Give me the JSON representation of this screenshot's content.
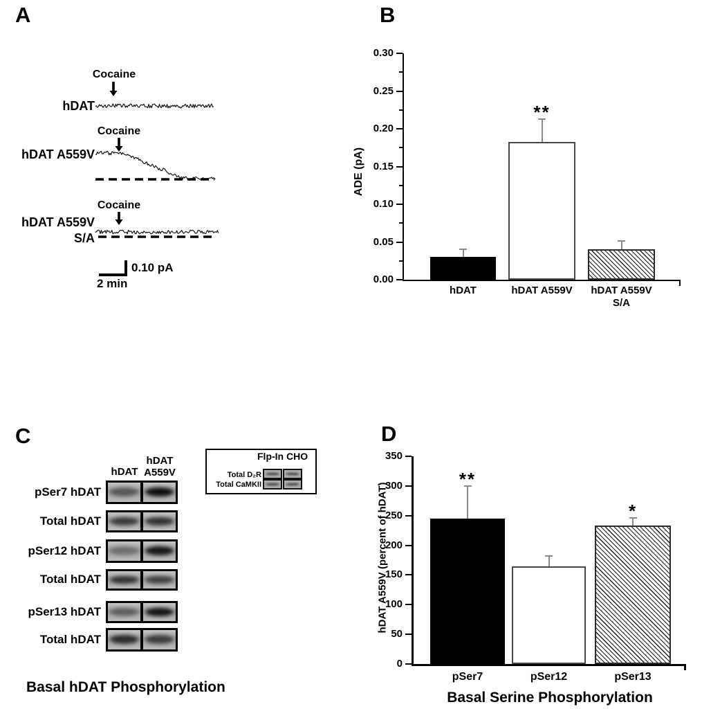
{
  "page": {
    "background": "#ffffff",
    "text_color": "#000000"
  },
  "panel_a": {
    "label": "A",
    "traces": [
      {
        "name": "hDAT",
        "name_line2": "",
        "stimulus": "Cocaine",
        "shape": "flat-noisy"
      },
      {
        "name": "hDAT A559V",
        "name_line2": "",
        "stimulus": "Cocaine",
        "shape": "declines-to-dashed-baseline"
      },
      {
        "name": "hDAT A559V",
        "name_line2": "S/A",
        "stimulus": "Cocaine",
        "shape": "flat-noisy-on-dashed-baseline"
      }
    ],
    "scale_bar": {
      "vertical_label": "0.10 pA",
      "horizontal_label": "2 min"
    }
  },
  "panel_b": {
    "label": "B"
  },
  "panel_c": {
    "label": "C",
    "column_headers": [
      "hDAT",
      "hDAT\nA559V"
    ],
    "blot_rows": [
      {
        "label": "pSer7 hDAT",
        "lanes": [
          0.45,
          0.9
        ]
      },
      {
        "label": "Total hDAT",
        "lanes": [
          0.62,
          0.68
        ]
      },
      {
        "label": "pSer12 hDAT",
        "lanes": [
          0.3,
          0.85
        ]
      },
      {
        "label": "Total hDAT",
        "lanes": [
          0.68,
          0.6
        ]
      },
      {
        "label": "pSer13 hDAT",
        "lanes": [
          0.4,
          0.88
        ]
      },
      {
        "label": "Total hDAT",
        "lanes": [
          0.72,
          0.62
        ]
      }
    ],
    "inset": {
      "title": "Flp-In CHO",
      "row_labels": [
        "Total D₂R",
        "Total CaMKII"
      ]
    },
    "caption": "Basal hDAT Phosphorylation"
  },
  "panel_d": {
    "label": "D"
  },
  "chart_data": [
    {
      "type": "bar",
      "panel": "B",
      "categories": [
        "hDAT",
        "hDAT A559V",
        "hDAT A559V\nS/A"
      ],
      "values": [
        0.03,
        0.183,
        0.04
      ],
      "errors_plus": [
        0.01,
        0.03,
        0.011
      ],
      "significance": [
        "",
        "**",
        ""
      ],
      "bar_styles": [
        "solid-black",
        "open-white",
        "hatched"
      ],
      "title": "",
      "xlabel": "",
      "ylabel": "ADE (pA)",
      "ylim": [
        0,
        0.3
      ],
      "ytick_step": 0.05,
      "ytick_minor_step": 0.025,
      "ytick_labels": [
        "0.00",
        "0.05",
        "0.10",
        "0.15",
        "0.20",
        "0.25",
        "0.30"
      ],
      "legend": "none",
      "grid": false
    },
    {
      "type": "bar",
      "panel": "D",
      "categories": [
        "pSer7",
        "pSer12",
        "pSer13"
      ],
      "values": [
        245,
        165,
        233
      ],
      "errors_plus": [
        55,
        17,
        13
      ],
      "significance": [
        "**",
        "",
        "*"
      ],
      "bar_styles": [
        "solid-black",
        "open-white",
        "hatched"
      ],
      "title": "",
      "xlabel": "Basal Serine Phosphorylation",
      "ylabel": "hDAT A559V (percent of hDAT)",
      "ylim": [
        0,
        350
      ],
      "ytick_step": 50,
      "ytick_labels": [
        "0",
        "50",
        "100",
        "150",
        "200",
        "250",
        "300",
        "350"
      ],
      "legend": "none",
      "grid": false
    }
  ]
}
